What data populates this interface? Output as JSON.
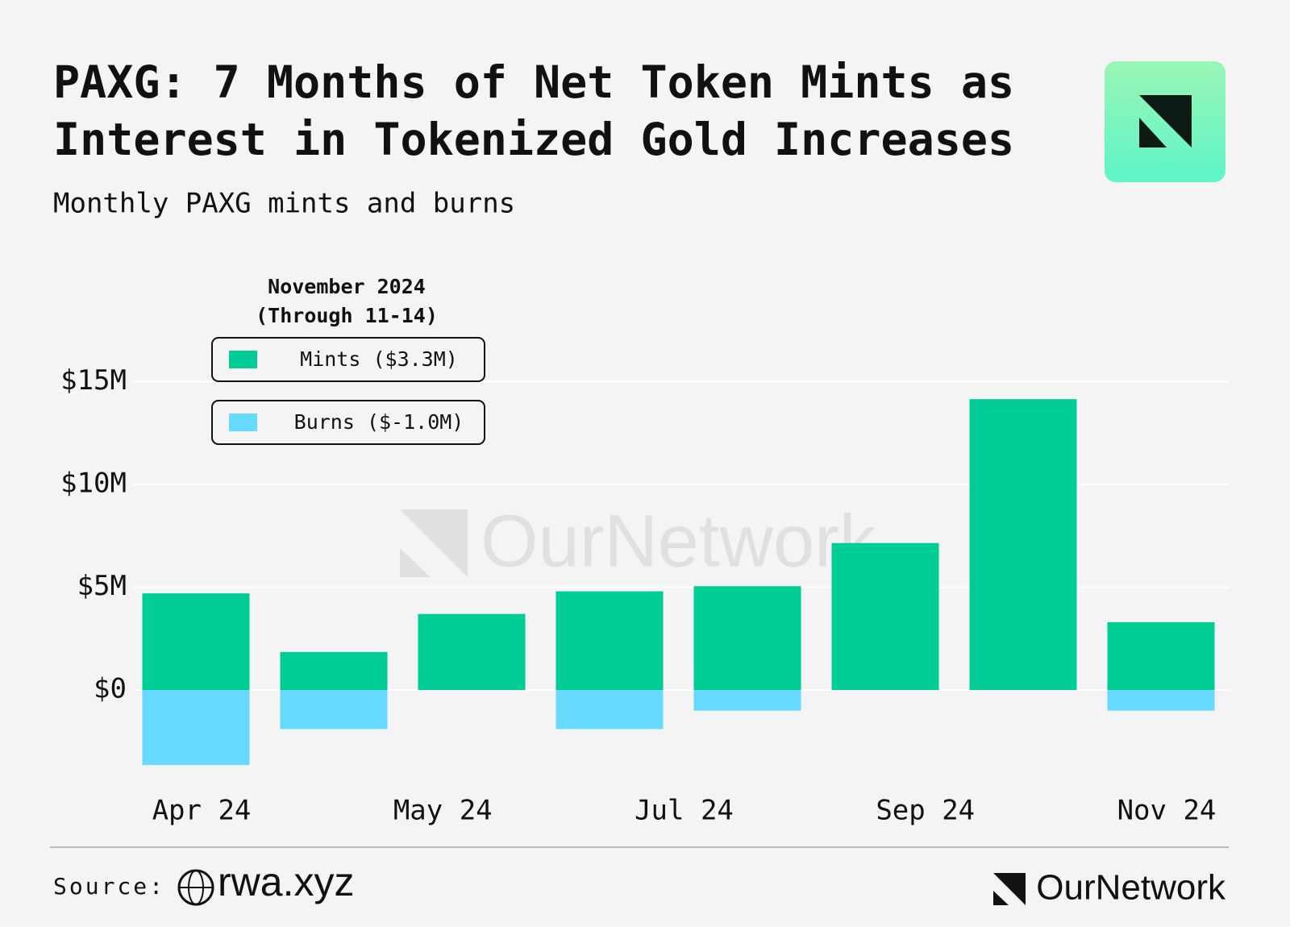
{
  "chart_data": {
    "type": "stacked_bar",
    "title": [
      "PAXG: 7 Months of Net Token Mints as",
      "Interest in Tokenized Gold Increases"
    ],
    "subtitle": "Monthly PAXG mints and burns",
    "x_labels": [
      "Apr 24",
      "May 24",
      "Jul 24",
      "Sep 24",
      "Nov 24"
    ],
    "series": [
      {
        "name": "Mints ($3.3M)",
        "color": "#00cc96",
        "values": [
          4.7,
          1.85,
          3.7,
          4.8,
          5.05,
          7.15,
          14.15,
          3.3
        ]
      },
      {
        "name": "Burns ($-1.0M)",
        "color": "#66d9ff",
        "values": [
          -3.65,
          -1.9,
          0,
          -1.9,
          -1.0,
          0,
          0,
          -1.0
        ]
      }
    ],
    "legend_title": [
      "November 2024",
      "(Through 11-14)"
    ],
    "ylim": [
      -4,
      16
    ],
    "yticks": [
      {
        "value": 0,
        "label": "$0"
      },
      {
        "value": 5,
        "label": "$5M"
      },
      {
        "value": 10,
        "label": "$10M"
      },
      {
        "value": 15,
        "label": "$15M"
      }
    ],
    "grid": true,
    "watermark": "OurNetwork",
    "source_label": "Source:",
    "source": "rwa.xyz",
    "brand": "OurNetwork"
  }
}
